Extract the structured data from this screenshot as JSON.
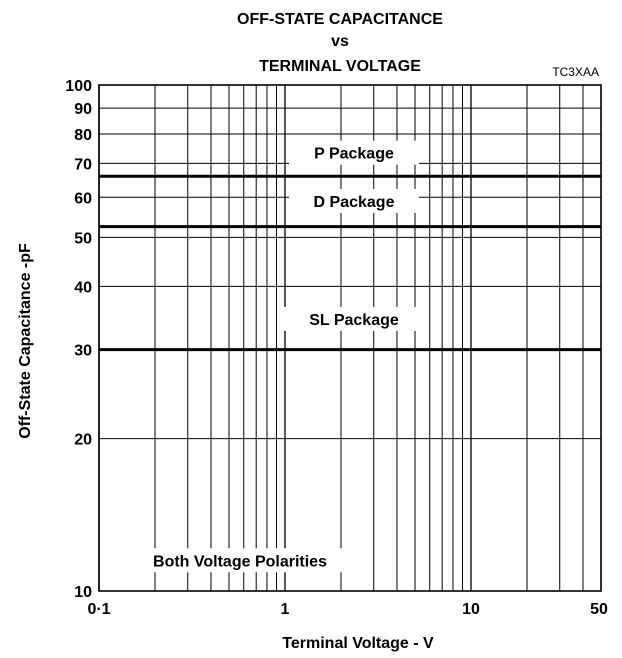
{
  "chart_data": {
    "type": "line",
    "title_lines": [
      "OFF-STATE CAPACITANCE",
      "vs",
      "TERMINAL VOLTAGE"
    ],
    "figure_code": "TC3XAA",
    "xlabel": "Terminal Voltage - V",
    "ylabel": "Off-State Capacitance -pF",
    "x_scale": "log",
    "y_scale": "log",
    "xlim": [
      0.1,
      50
    ],
    "ylim": [
      10,
      100
    ],
    "grid": true,
    "x_tick_labels": [
      {
        "value": 0.1,
        "label": "0·1"
      },
      {
        "value": 1,
        "label": "1"
      },
      {
        "value": 10,
        "label": "10"
      },
      {
        "value": 50,
        "label": "50"
      }
    ],
    "y_tick_labels": [
      {
        "value": 10,
        "label": "10"
      },
      {
        "value": 20,
        "label": "20"
      },
      {
        "value": 30,
        "label": "30"
      },
      {
        "value": 40,
        "label": "40"
      },
      {
        "value": 50,
        "label": "50"
      },
      {
        "value": 60,
        "label": "60"
      },
      {
        "value": 70,
        "label": "70"
      },
      {
        "value": 80,
        "label": "80"
      },
      {
        "value": 90,
        "label": "90"
      },
      {
        "value": 100,
        "label": "100"
      }
    ],
    "series": [
      {
        "name": "P Package",
        "x": [
          0.1,
          50
        ],
        "y": [
          66,
          66
        ]
      },
      {
        "name": "D Package",
        "x": [
          0.1,
          50
        ],
        "y": [
          52.5,
          52.5
        ]
      },
      {
        "name": "SL Package",
        "x": [
          0.1,
          50
        ],
        "y": [
          30,
          30
        ]
      }
    ],
    "annotations": [
      {
        "text": "Both Voltage Polarities",
        "x": 0.5,
        "y": 11.5
      }
    ]
  }
}
